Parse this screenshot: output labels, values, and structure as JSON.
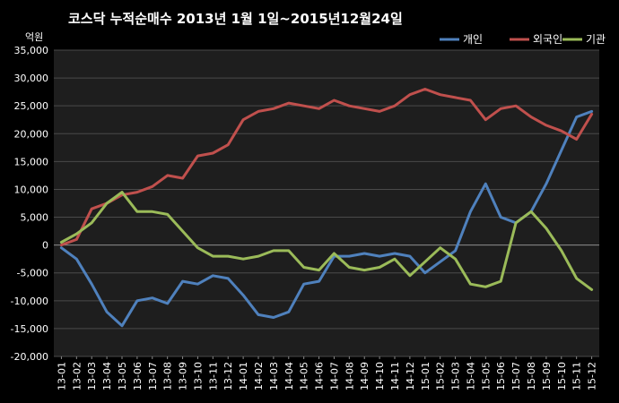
{
  "chart_data": {
    "type": "line",
    "title": "코스닥  누적순매수 2013년 1월 1일~2015년12월24일",
    "ylabel": "억원",
    "xlabel": "",
    "ylim": [
      -20000,
      35000
    ],
    "yticks": [
      35000,
      30000,
      25000,
      20000,
      15000,
      10000,
      5000,
      0,
      -5000,
      -10000,
      -15000,
      -20000
    ],
    "ytick_labels": [
      "35,000",
      "30,000",
      "25,000",
      "20,000",
      "15,000",
      "10,000",
      "5,000",
      "0",
      "-5,000",
      "-10,000",
      "-15,000",
      "-20,000"
    ],
    "grid": true,
    "legend_position": "top-right",
    "categories": [
      "13-01",
      "13-02",
      "13-03",
      "13-04",
      "13-05",
      "13-06",
      "13-07",
      "13-08",
      "13-09",
      "13-10",
      "13-11",
      "13-12",
      "14-01",
      "14-02",
      "14-03",
      "14-04",
      "14-05",
      "14-06",
      "14-07",
      "14-08",
      "14-09",
      "14-10",
      "14-11",
      "14-12",
      "15-01",
      "15-02",
      "15-03",
      "15-04",
      "15-05",
      "15-06",
      "15-07",
      "15-08",
      "15-09",
      "15-10",
      "15-11",
      "15-12"
    ],
    "series": [
      {
        "name": "개인",
        "color": "#4f81bd",
        "values": [
          -500,
          -2500,
          -7000,
          -12000,
          -14500,
          -10000,
          -9500,
          -10500,
          -6500,
          -7000,
          -5500,
          -6000,
          -9000,
          -12500,
          -13000,
          -12000,
          -7000,
          -6500,
          -2000,
          -2000,
          -1500,
          -2000,
          -1500,
          -2000,
          -5000,
          -3000,
          -1000,
          6000,
          11000,
          5000,
          4000,
          6000,
          11000,
          17000,
          23000,
          24000
        ]
      },
      {
        "name": "외국인",
        "color": "#c0504d",
        "values": [
          0,
          1000,
          6500,
          7500,
          9000,
          9500,
          10500,
          12500,
          12000,
          16000,
          16500,
          18000,
          22500,
          24000,
          24500,
          25500,
          25000,
          24500,
          26000,
          25000,
          24500,
          24000,
          25000,
          27000,
          28000,
          27000,
          26500,
          26000,
          22500,
          24500,
          25000,
          23000,
          21500,
          20500,
          19000,
          23500
        ]
      },
      {
        "name": "기관",
        "color": "#9bbb59",
        "values": [
          500,
          2000,
          4000,
          7500,
          9500,
          6000,
          6000,
          5500,
          2500,
          -500,
          -2000,
          -2000,
          -2500,
          -2000,
          -1000,
          -1000,
          -4000,
          -4500,
          -1500,
          -4000,
          -4500,
          -4000,
          -2500,
          -5500,
          -3000,
          -500,
          -2500,
          -7000,
          -7500,
          -6500,
          4000,
          6000,
          3000,
          -1000,
          -6000,
          -8000
        ]
      }
    ]
  }
}
